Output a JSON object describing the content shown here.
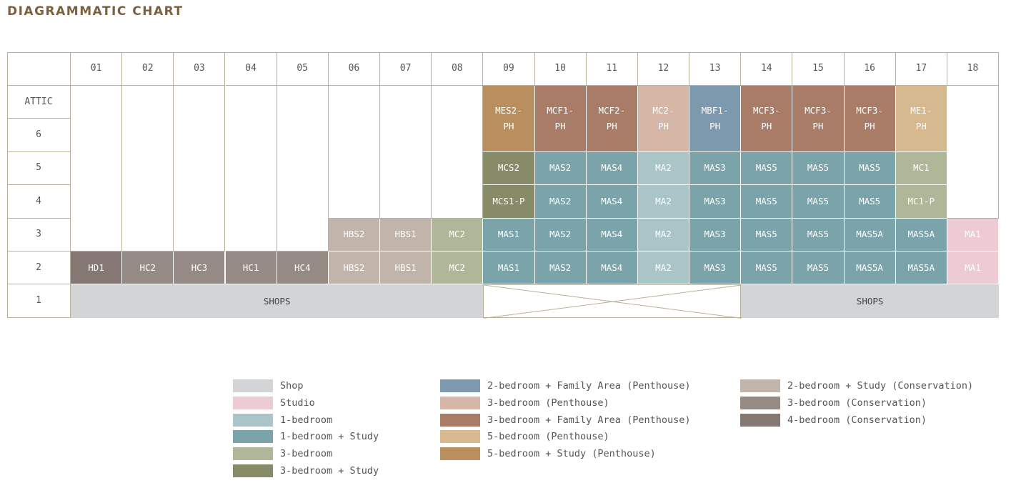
{
  "title": "DIAGRAMMATIC CHART",
  "columns": [
    "01",
    "02",
    "03",
    "04",
    "05",
    "06",
    "07",
    "08",
    "09",
    "10",
    "11",
    "12",
    "13",
    "14",
    "15",
    "16",
    "17",
    "18"
  ],
  "rows": [
    "ATTIC",
    "6",
    "5",
    "4",
    "3",
    "2",
    "1"
  ],
  "colors": {
    "shop": "#d2d4d5",
    "studio": "#eccbd2",
    "one_bed": "#a9c5c8",
    "one_bed_study": "#7ba4aa",
    "three_bed": "#b0b698",
    "three_bed_study": "#878b68",
    "two_bed_fa_ph": "#7d99ad",
    "three_bed_ph": "#d6b7a7",
    "three_bed_fa_ph": "#a87c67",
    "five_bed_ph": "#d7b98f",
    "five_bed_study_ph": "#b9905d",
    "two_bed_study_cons": "#c0b4ab",
    "three_bed_cons": "#968a84",
    "four_bed_cons": "#857771",
    "grid_line": "#b9b09a"
  },
  "units": [
    {
      "label": "MES2-\nPH",
      "c": 9,
      "r": 0,
      "rs": 2,
      "type": "five_bed_study_ph"
    },
    {
      "label": "MCF1-\nPH",
      "c": 10,
      "r": 0,
      "rs": 2,
      "type": "three_bed_fa_ph"
    },
    {
      "label": "MCF2-\nPH",
      "c": 11,
      "r": 0,
      "rs": 2,
      "type": "three_bed_fa_ph"
    },
    {
      "label": "MC2-\nPH",
      "c": 12,
      "r": 0,
      "rs": 2,
      "type": "three_bed_ph"
    },
    {
      "label": "MBF1-\nPH",
      "c": 13,
      "r": 0,
      "rs": 2,
      "type": "two_bed_fa_ph"
    },
    {
      "label": "MCF3-\nPH",
      "c": 14,
      "r": 0,
      "rs": 2,
      "type": "three_bed_fa_ph"
    },
    {
      "label": "MCF3-\nPH",
      "c": 15,
      "r": 0,
      "rs": 2,
      "type": "three_bed_fa_ph"
    },
    {
      "label": "MCF3-\nPH",
      "c": 16,
      "r": 0,
      "rs": 2,
      "type": "three_bed_fa_ph"
    },
    {
      "label": "ME1-\nPH",
      "c": 17,
      "r": 0,
      "rs": 2,
      "type": "five_bed_ph"
    },
    {
      "label": "MCS2",
      "c": 9,
      "r": 2,
      "rs": 1,
      "type": "three_bed_study"
    },
    {
      "label": "MAS2",
      "c": 10,
      "r": 2,
      "rs": 1,
      "type": "one_bed_study"
    },
    {
      "label": "MAS4",
      "c": 11,
      "r": 2,
      "rs": 1,
      "type": "one_bed_study"
    },
    {
      "label": "MA2",
      "c": 12,
      "r": 2,
      "rs": 1,
      "type": "one_bed"
    },
    {
      "label": "MAS3",
      "c": 13,
      "r": 2,
      "rs": 1,
      "type": "one_bed_study"
    },
    {
      "label": "MAS5",
      "c": 14,
      "r": 2,
      "rs": 1,
      "type": "one_bed_study"
    },
    {
      "label": "MAS5",
      "c": 15,
      "r": 2,
      "rs": 1,
      "type": "one_bed_study"
    },
    {
      "label": "MAS5",
      "c": 16,
      "r": 2,
      "rs": 1,
      "type": "one_bed_study"
    },
    {
      "label": "MC1",
      "c": 17,
      "r": 2,
      "rs": 1,
      "type": "three_bed"
    },
    {
      "label": "MCS1-P",
      "c": 9,
      "r": 3,
      "rs": 1,
      "type": "three_bed_study"
    },
    {
      "label": "MAS2",
      "c": 10,
      "r": 3,
      "rs": 1,
      "type": "one_bed_study"
    },
    {
      "label": "MAS4",
      "c": 11,
      "r": 3,
      "rs": 1,
      "type": "one_bed_study"
    },
    {
      "label": "MA2",
      "c": 12,
      "r": 3,
      "rs": 1,
      "type": "one_bed"
    },
    {
      "label": "MAS3",
      "c": 13,
      "r": 3,
      "rs": 1,
      "type": "one_bed_study"
    },
    {
      "label": "MAS5",
      "c": 14,
      "r": 3,
      "rs": 1,
      "type": "one_bed_study"
    },
    {
      "label": "MAS5",
      "c": 15,
      "r": 3,
      "rs": 1,
      "type": "one_bed_study"
    },
    {
      "label": "MAS5",
      "c": 16,
      "r": 3,
      "rs": 1,
      "type": "one_bed_study"
    },
    {
      "label": "MC1-P",
      "c": 17,
      "r": 3,
      "rs": 1,
      "type": "three_bed"
    },
    {
      "label": "HBS2",
      "c": 6,
      "r": 4,
      "rs": 1,
      "type": "two_bed_study_cons"
    },
    {
      "label": "HBS1",
      "c": 7,
      "r": 4,
      "rs": 1,
      "type": "two_bed_study_cons"
    },
    {
      "label": "MC2",
      "c": 8,
      "r": 4,
      "rs": 1,
      "type": "three_bed"
    },
    {
      "label": "MAS1",
      "c": 9,
      "r": 4,
      "rs": 1,
      "type": "one_bed_study"
    },
    {
      "label": "MAS2",
      "c": 10,
      "r": 4,
      "rs": 1,
      "type": "one_bed_study"
    },
    {
      "label": "MAS4",
      "c": 11,
      "r": 4,
      "rs": 1,
      "type": "one_bed_study"
    },
    {
      "label": "MA2",
      "c": 12,
      "r": 4,
      "rs": 1,
      "type": "one_bed"
    },
    {
      "label": "MAS3",
      "c": 13,
      "r": 4,
      "rs": 1,
      "type": "one_bed_study"
    },
    {
      "label": "MAS5",
      "c": 14,
      "r": 4,
      "rs": 1,
      "type": "one_bed_study"
    },
    {
      "label": "MAS5",
      "c": 15,
      "r": 4,
      "rs": 1,
      "type": "one_bed_study"
    },
    {
      "label": "MAS5A",
      "c": 16,
      "r": 4,
      "rs": 1,
      "type": "one_bed_study"
    },
    {
      "label": "MAS5A",
      "c": 17,
      "r": 4,
      "rs": 1,
      "type": "one_bed_study"
    },
    {
      "label": "MA1",
      "c": 18,
      "r": 4,
      "rs": 1,
      "type": "studio"
    },
    {
      "label": "HD1",
      "c": 1,
      "r": 5,
      "rs": 1,
      "type": "four_bed_cons"
    },
    {
      "label": "HC2",
      "c": 2,
      "r": 5,
      "rs": 1,
      "type": "three_bed_cons"
    },
    {
      "label": "HC3",
      "c": 3,
      "r": 5,
      "rs": 1,
      "type": "three_bed_cons"
    },
    {
      "label": "HC1",
      "c": 4,
      "r": 5,
      "rs": 1,
      "type": "three_bed_cons"
    },
    {
      "label": "HC4",
      "c": 5,
      "r": 5,
      "rs": 1,
      "type": "three_bed_cons"
    },
    {
      "label": "HBS2",
      "c": 6,
      "r": 5,
      "rs": 1,
      "type": "two_bed_study_cons"
    },
    {
      "label": "HBS1",
      "c": 7,
      "r": 5,
      "rs": 1,
      "type": "two_bed_study_cons"
    },
    {
      "label": "MC2",
      "c": 8,
      "r": 5,
      "rs": 1,
      "type": "three_bed"
    },
    {
      "label": "MAS1",
      "c": 9,
      "r": 5,
      "rs": 1,
      "type": "one_bed_study"
    },
    {
      "label": "MAS2",
      "c": 10,
      "r": 5,
      "rs": 1,
      "type": "one_bed_study"
    },
    {
      "label": "MAS4",
      "c": 11,
      "r": 5,
      "rs": 1,
      "type": "one_bed_study"
    },
    {
      "label": "MA2",
      "c": 12,
      "r": 5,
      "rs": 1,
      "type": "one_bed"
    },
    {
      "label": "MAS3",
      "c": 13,
      "r": 5,
      "rs": 1,
      "type": "one_bed_study"
    },
    {
      "label": "MAS5",
      "c": 14,
      "r": 5,
      "rs": 1,
      "type": "one_bed_study"
    },
    {
      "label": "MAS5",
      "c": 15,
      "r": 5,
      "rs": 1,
      "type": "one_bed_study"
    },
    {
      "label": "MAS5A",
      "c": 16,
      "r": 5,
      "rs": 1,
      "type": "one_bed_study"
    },
    {
      "label": "MAS5A",
      "c": 17,
      "r": 5,
      "rs": 1,
      "type": "one_bed_study"
    },
    {
      "label": "MA1",
      "c": 18,
      "r": 5,
      "rs": 1,
      "type": "studio"
    }
  ],
  "shops": [
    {
      "label": "SHOPS",
      "c": 1,
      "cs": 8,
      "type": "shop"
    },
    {
      "label": "SHOPS",
      "c": 14,
      "cs": 5,
      "type": "shop"
    }
  ],
  "void_block": {
    "c": 9,
    "cs": 5
  },
  "legend": [
    {
      "label": "Shop",
      "type": "shop",
      "col": 0,
      "row": 0
    },
    {
      "label": "Studio",
      "type": "studio",
      "col": 0,
      "row": 1
    },
    {
      "label": "1-bedroom",
      "type": "one_bed",
      "col": 0,
      "row": 2
    },
    {
      "label": "1-bedroom + Study",
      "type": "one_bed_study",
      "col": 0,
      "row": 3
    },
    {
      "label": "3-bedroom",
      "type": "three_bed",
      "col": 0,
      "row": 4
    },
    {
      "label": "3-bedroom + Study",
      "type": "three_bed_study",
      "col": 0,
      "row": 5
    },
    {
      "label": "2-bedroom + Family Area (Penthouse)",
      "type": "two_bed_fa_ph",
      "col": 1,
      "row": 0
    },
    {
      "label": "3-bedroom (Penthouse)",
      "type": "three_bed_ph",
      "col": 1,
      "row": 1
    },
    {
      "label": "3-bedroom + Family Area (Penthouse)",
      "type": "three_bed_fa_ph",
      "col": 1,
      "row": 2
    },
    {
      "label": "5-bedroom (Penthouse)",
      "type": "five_bed_ph",
      "col": 1,
      "row": 3
    },
    {
      "label": "5-bedroom + Study (Penthouse)",
      "type": "five_bed_study_ph",
      "col": 1,
      "row": 4
    },
    {
      "label": "2-bedroom + Study (Conservation)",
      "type": "two_bed_study_cons",
      "col": 2,
      "row": 0
    },
    {
      "label": "3-bedroom (Conservation)",
      "type": "three_bed_cons",
      "col": 2,
      "row": 1
    },
    {
      "label": "4-bedroom (Conservation)",
      "type": "four_bed_cons",
      "col": 2,
      "row": 2
    }
  ]
}
